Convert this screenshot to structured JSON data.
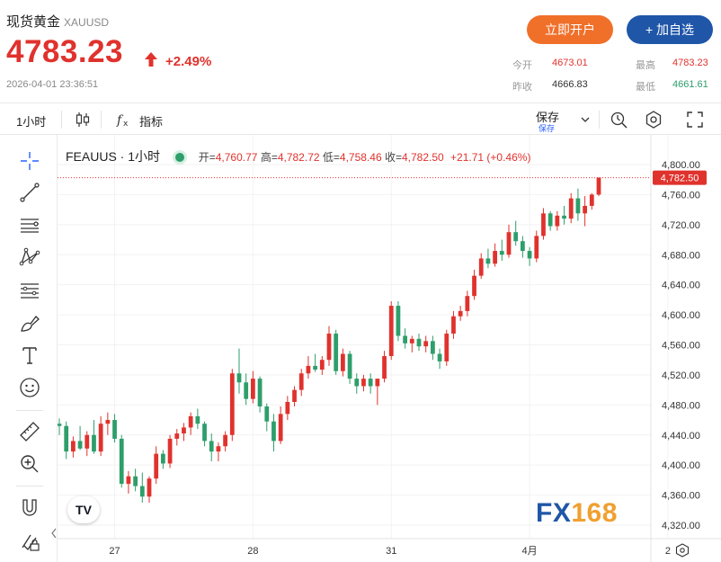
{
  "header": {
    "name": "现货黄金",
    "symbol": "XAUUSD",
    "price": "4783.23",
    "change": "+2.49%",
    "timestamp": "2026-04-01 23:36:51",
    "btn_open": "立即开户",
    "btn_watch": "+ 加自选",
    "stats": {
      "open_label": "今开",
      "open": "4673.01",
      "high_label": "最高",
      "high": "4783.23",
      "prev_label": "昨收",
      "prev": "4666.83",
      "low_label": "最低",
      "low": "4661.61"
    }
  },
  "toolbar": {
    "interval": "1小时",
    "indicators": "指标",
    "save": "保存",
    "save_sub": "保存"
  },
  "legend": {
    "symbol": "FEAUUS",
    "interval": "1小时",
    "open_label": "开=",
    "open": "4,760.77",
    "high_label": "高=",
    "high": "4,782.72",
    "low_label": "低=",
    "low": "4,758.46",
    "close_label": "收=",
    "close": "4,782.50",
    "change": "+21.71 (+0.46%)"
  },
  "branding": {
    "watermark": "FX168",
    "tv": "TV"
  },
  "colors": {
    "up": "#e0322d",
    "down": "#2e9e6b",
    "accent": "#1f56a8",
    "orange": "#f0702a"
  },
  "chart_data": {
    "type": "candlestick",
    "interval": "1小时",
    "ylim": [
      4300,
      4820
    ],
    "y_ticks": [
      "4,800.00",
      "4,760.00",
      "4,720.00",
      "4,680.00",
      "4,640.00",
      "4,600.00",
      "4,560.00",
      "4,520.00",
      "4,480.00",
      "4,440.00",
      "4,400.00",
      "4,360.00",
      "4,320.00"
    ],
    "y_tick_values": [
      4800,
      4760,
      4720,
      4680,
      4640,
      4600,
      4560,
      4520,
      4480,
      4440,
      4400,
      4360,
      4320
    ],
    "x_ticks": [
      "27",
      "28",
      "31",
      "4月",
      "2"
    ],
    "x_tick_index": [
      8,
      28,
      48,
      68,
      88
    ],
    "last_price_label": "4,782.50",
    "last_price": 4782.5,
    "candles": [
      [
        4455,
        4462,
        4440,
        4452
      ],
      [
        4452,
        4458,
        4408,
        4418
      ],
      [
        4418,
        4438,
        4410,
        4432
      ],
      [
        4432,
        4452,
        4420,
        4422
      ],
      [
        4422,
        4445,
        4412,
        4440
      ],
      [
        4440,
        4460,
        4415,
        4418
      ],
      [
        4418,
        4465,
        4412,
        4455
      ],
      [
        4455,
        4470,
        4440,
        4460
      ],
      [
        4460,
        4468,
        4430,
        4435
      ],
      [
        4435,
        4440,
        4370,
        4375
      ],
      [
        4375,
        4392,
        4362,
        4385
      ],
      [
        4385,
        4395,
        4365,
        4372
      ],
      [
        4372,
        4390,
        4350,
        4358
      ],
      [
        4358,
        4385,
        4350,
        4382
      ],
      [
        4382,
        4425,
        4375,
        4415
      ],
      [
        4415,
        4420,
        4395,
        4402
      ],
      [
        4402,
        4440,
        4396,
        4435
      ],
      [
        4435,
        4448,
        4426,
        4442
      ],
      [
        4442,
        4456,
        4432,
        4450
      ],
      [
        4450,
        4470,
        4440,
        4465
      ],
      [
        4465,
        4475,
        4448,
        4455
      ],
      [
        4455,
        4458,
        4425,
        4432
      ],
      [
        4432,
        4442,
        4405,
        4418
      ],
      [
        4418,
        4430,
        4405,
        4425
      ],
      [
        4425,
        4445,
        4418,
        4440
      ],
      [
        4440,
        4528,
        4432,
        4522
      ],
      [
        4522,
        4555,
        4495,
        4510
      ],
      [
        4510,
        4522,
        4480,
        4488
      ],
      [
        4488,
        4525,
        4482,
        4515
      ],
      [
        4515,
        4518,
        4470,
        4478
      ],
      [
        4478,
        4482,
        4445,
        4458
      ],
      [
        4458,
        4468,
        4418,
        4432
      ],
      [
        4432,
        4478,
        4428,
        4468
      ],
      [
        4468,
        4492,
        4460,
        4484
      ],
      [
        4484,
        4505,
        4478,
        4500
      ],
      [
        4500,
        4528,
        4492,
        4522
      ],
      [
        4522,
        4545,
        4515,
        4532
      ],
      [
        4532,
        4548,
        4524,
        4527
      ],
      [
        4527,
        4545,
        4520,
        4540
      ],
      [
        4540,
        4585,
        4532,
        4575
      ],
      [
        4575,
        4580,
        4520,
        4525
      ],
      [
        4525,
        4555,
        4518,
        4548
      ],
      [
        4548,
        4552,
        4508,
        4515
      ],
      [
        4515,
        4522,
        4495,
        4505
      ],
      [
        4505,
        4520,
        4498,
        4515
      ],
      [
        4515,
        4522,
        4495,
        4505
      ],
      [
        4505,
        4512,
        4480,
        4515
      ],
      [
        4515,
        4552,
        4510,
        4545
      ],
      [
        4545,
        4618,
        4540,
        4612
      ],
      [
        4612,
        4618,
        4565,
        4572
      ],
      [
        4572,
        4582,
        4555,
        4562
      ],
      [
        4562,
        4572,
        4550,
        4568
      ],
      [
        4568,
        4575,
        4552,
        4558
      ],
      [
        4558,
        4572,
        4550,
        4565
      ],
      [
        4565,
        4572,
        4540,
        4548
      ],
      [
        4548,
        4555,
        4528,
        4538
      ],
      [
        4538,
        4580,
        4532,
        4575
      ],
      [
        4575,
        4605,
        4568,
        4598
      ],
      [
        4598,
        4612,
        4592,
        4605
      ],
      [
        4605,
        4632,
        4598,
        4625
      ],
      [
        4625,
        4660,
        4620,
        4652
      ],
      [
        4652,
        4682,
        4648,
        4675
      ],
      [
        4675,
        4688,
        4662,
        4668
      ],
      [
        4668,
        4695,
        4664,
        4685
      ],
      [
        4685,
        4700,
        4672,
        4680
      ],
      [
        4680,
        4720,
        4676,
        4710
      ],
      [
        4710,
        4725,
        4692,
        4698
      ],
      [
        4698,
        4705,
        4676,
        4685
      ],
      [
        4685,
        4690,
        4665,
        4675
      ],
      [
        4675,
        4712,
        4670,
        4705
      ],
      [
        4705,
        4742,
        4700,
        4735
      ],
      [
        4735,
        4738,
        4712,
        4718
      ],
      [
        4718,
        4738,
        4712,
        4732
      ],
      [
        4732,
        4745,
        4720,
        4728
      ],
      [
        4728,
        4762,
        4722,
        4755
      ],
      [
        4755,
        4768,
        4725,
        4735
      ],
      [
        4735,
        4758,
        4718,
        4745
      ],
      [
        4745,
        4762,
        4740,
        4760
      ],
      [
        4760,
        4783,
        4758,
        4782.5
      ]
    ]
  }
}
